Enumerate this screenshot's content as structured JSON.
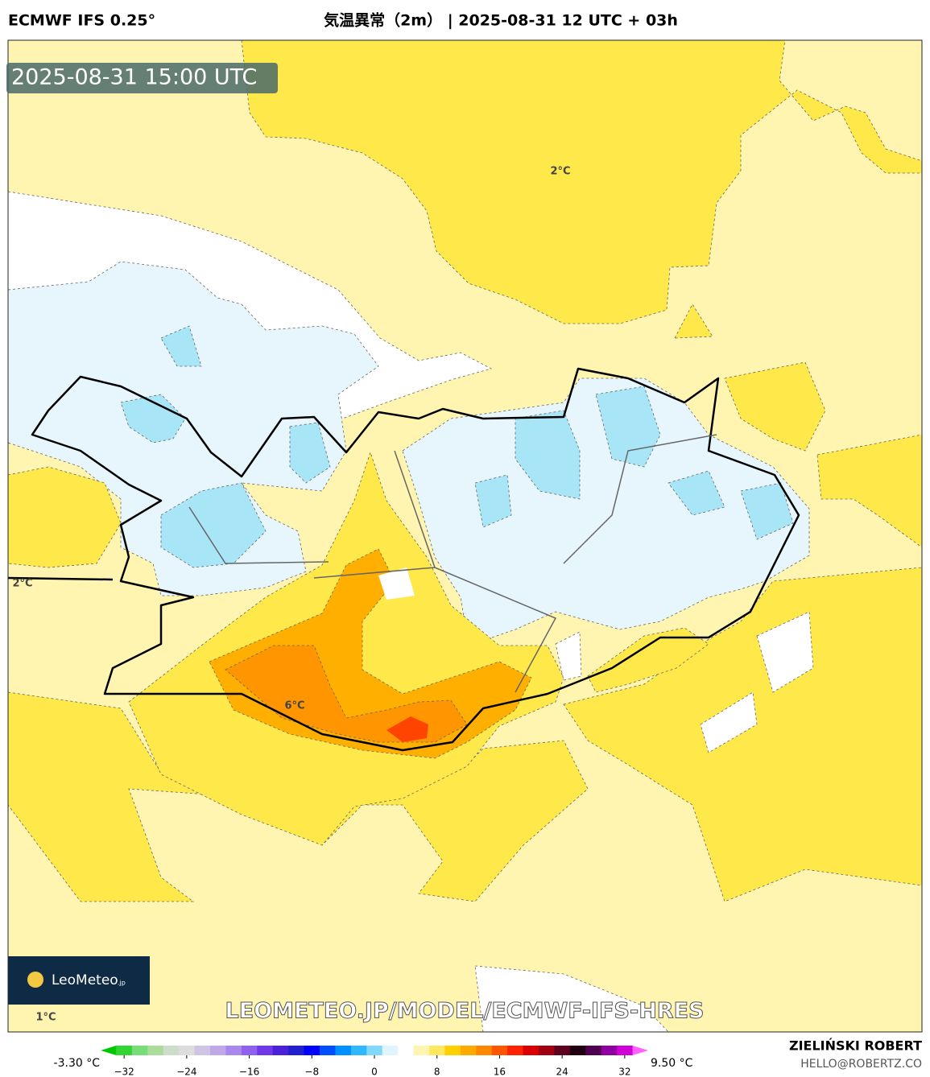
{
  "header": {
    "title": "ECMWF IFS 0.25°",
    "subtitle": "気温異常（2m） | 2025-08-31 12 UTC + 03h"
  },
  "map": {
    "timestamp": "2025-08-31 15:00 UTC",
    "contour_labels": [
      "2°C",
      "2°C",
      "6°C",
      "1°C"
    ],
    "watermark": "LEOMETEO.JP/MODEL/ECMWF-IFS-HRES"
  },
  "logo": {
    "name": "LeoMeteo",
    "suffix": ".jp"
  },
  "author": {
    "name": "ZIELIŃSKI ROBERT",
    "email": "HELLO@ROBERTZ.CO"
  },
  "colorbar": {
    "min_label": "-3.30 °C",
    "max_label": "9.50 °C",
    "lim": [
      -35,
      35
    ],
    "ticks": [
      {
        "value": -32,
        "label": "−32"
      },
      {
        "value": -24,
        "label": "−24"
      },
      {
        "value": -16,
        "label": "−16"
      },
      {
        "value": -8,
        "label": "−8"
      },
      0,
      8,
      16,
      24,
      32
    ],
    "colors": [
      "#00c800",
      "#33d433",
      "#77dd77",
      "#aadd99",
      "#ccddcc",
      "#dddddd",
      "#d0c4e4",
      "#c0a8e8",
      "#a888ec",
      "#9060f0",
      "#7038e8",
      "#4a20d8",
      "#2020d0",
      "#0000ff",
      "#0050ff",
      "#0090ff",
      "#30b8ff",
      "#80d8fa",
      "#dff4fc",
      "#ffffff",
      "#fff5b0",
      "#ffe860",
      "#ffd000",
      "#ffaa00",
      "#ff8800",
      "#ff5500",
      "#ff2200",
      "#d80000",
      "#a00010",
      "#600020",
      "#200010",
      "#500050",
      "#9000a0",
      "#d000d8",
      "#ff60ff"
    ]
  }
}
